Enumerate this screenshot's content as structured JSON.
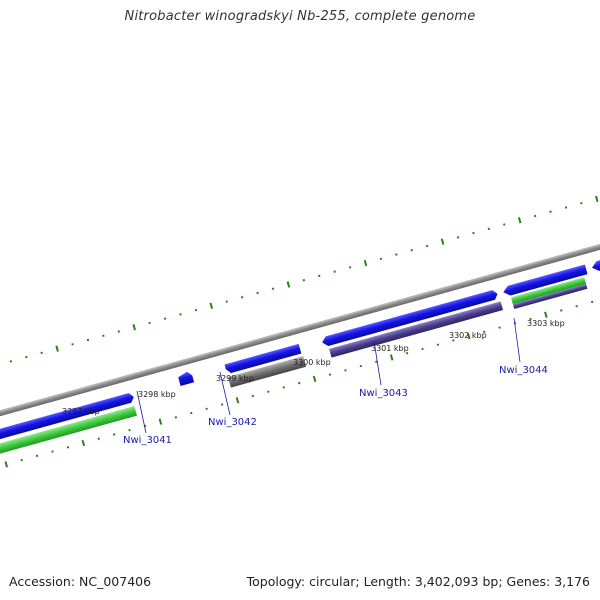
{
  "header": {
    "title": "Nitrobacter winogradskyi Nb-255, complete genome"
  },
  "footer": {
    "accession": "Accession: NC_007406",
    "summary": "Topology: circular; Length: 3,402,093 bp; Genes: 3,176"
  },
  "colors": {
    "background": "#ffffff",
    "backbone": "#8a8a8a",
    "gene_forward": "#1414e6",
    "gene_rna_green": "#3cc93c",
    "gene_purple": "#4a3f8c",
    "gene_grey": "#707070",
    "tick_green": "#2f7f1f",
    "label_blue": "#1a1aa8"
  },
  "scale": {
    "ticks": [
      {
        "label": "3297 kbp"
      },
      {
        "label": "3298 kbp"
      },
      {
        "label": "3299 kbp"
      },
      {
        "label": "3300 kbp"
      },
      {
        "label": "3301 kbp"
      },
      {
        "label": "3302 kbp"
      },
      {
        "label": "3303 kbp"
      }
    ]
  },
  "gene_labels": [
    {
      "name": "Nwi_3041"
    },
    {
      "name": "Nwi_3042"
    },
    {
      "name": "Nwi_3043"
    },
    {
      "name": "Nwi_3044"
    }
  ]
}
